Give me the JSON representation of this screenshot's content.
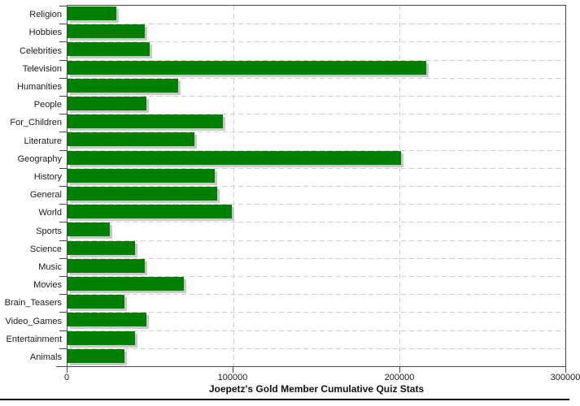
{
  "chart_data": {
    "type": "bar",
    "orientation": "horizontal",
    "title": "Joepetz's Gold Member Cumulative Quiz Stats",
    "categories": [
      "Religion",
      "Hobbies",
      "Celebrities",
      "Television",
      "Humanities",
      "People",
      "For_Children",
      "Literature",
      "Geography",
      "History",
      "General",
      "World",
      "Sports",
      "Science",
      "Music",
      "Movies",
      "Brain_Teasers",
      "Video_Games",
      "Entertainment",
      "Animals"
    ],
    "values": [
      29500,
      46400,
      49700,
      216300,
      66800,
      47500,
      93800,
      76600,
      200800,
      88900,
      90000,
      99000,
      25500,
      40500,
      46400,
      69900,
      34500,
      47500,
      40500,
      34200
    ],
    "xlim": [
      0,
      300000
    ],
    "x_ticks": [
      0,
      100000,
      200000,
      300000
    ],
    "x_tick_labels": [
      "0",
      "100000",
      "200000",
      "300000"
    ],
    "xlabel": "",
    "ylabel": "",
    "grid": "dashed",
    "legend": "none",
    "colors": {
      "bar": "#008000",
      "bar_shadow": "#c9c9c9",
      "gridline": "#cccccc",
      "axis": "#474747",
      "text": "#1a1a1a"
    }
  }
}
